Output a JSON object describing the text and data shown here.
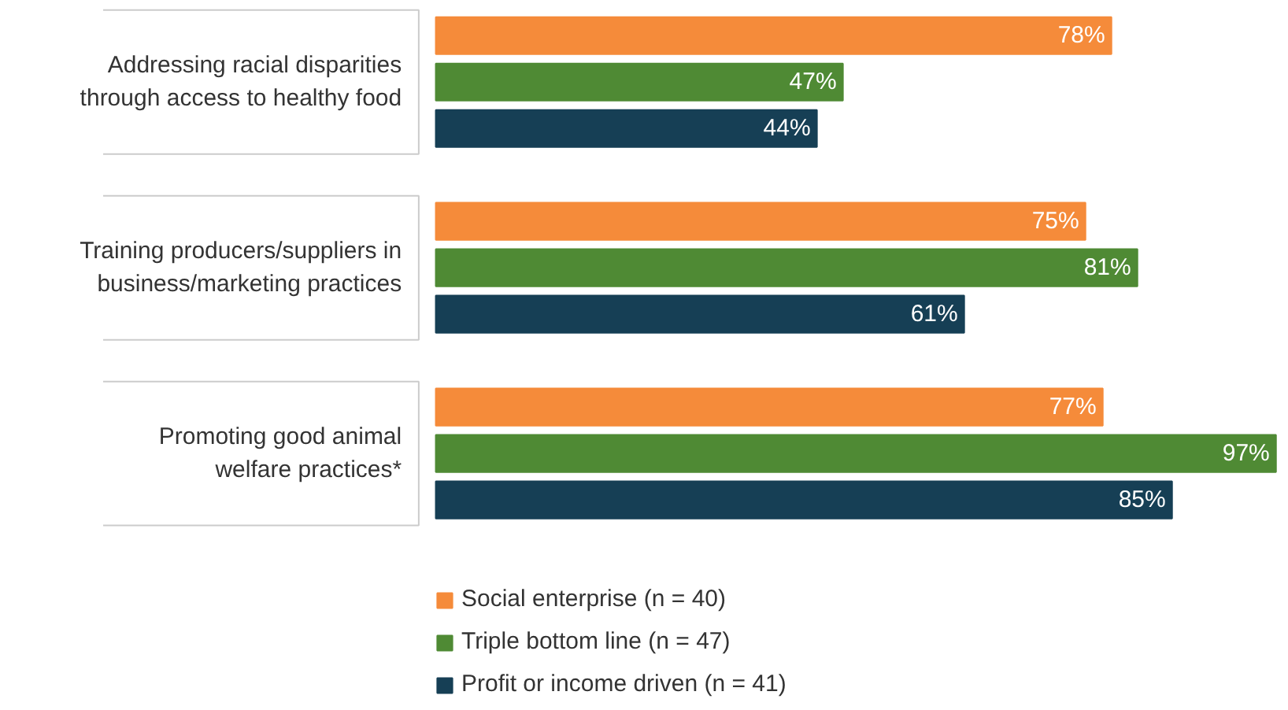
{
  "chart_data": {
    "type": "bar",
    "orientation": "horizontal",
    "categories": [
      "Addressing racial disparities\nthrough access to healthy food",
      "Training producers/suppliers in\nbusiness/marketing practices",
      "Promoting good animal\nwelfare practices*"
    ],
    "series": [
      {
        "name": "Social enterprise (n = 40)",
        "color": "#f58b3a",
        "values": [
          78,
          75,
          77
        ],
        "value_labels": [
          "78%",
          "75%",
          "77%"
        ]
      },
      {
        "name": "Triple bottom line (n = 47)",
        "color": "#4f8a34",
        "values": [
          47,
          81,
          97
        ],
        "value_labels": [
          "47%",
          "81%",
          "97%"
        ]
      },
      {
        "name": "Profit or income driven (n = 41)",
        "color": "#163f55",
        "values": [
          44,
          61,
          85
        ],
        "value_labels": [
          "44%",
          "61%",
          "85%"
        ]
      }
    ],
    "tick_labels": false,
    "grid": false,
    "legend": "bottom"
  }
}
